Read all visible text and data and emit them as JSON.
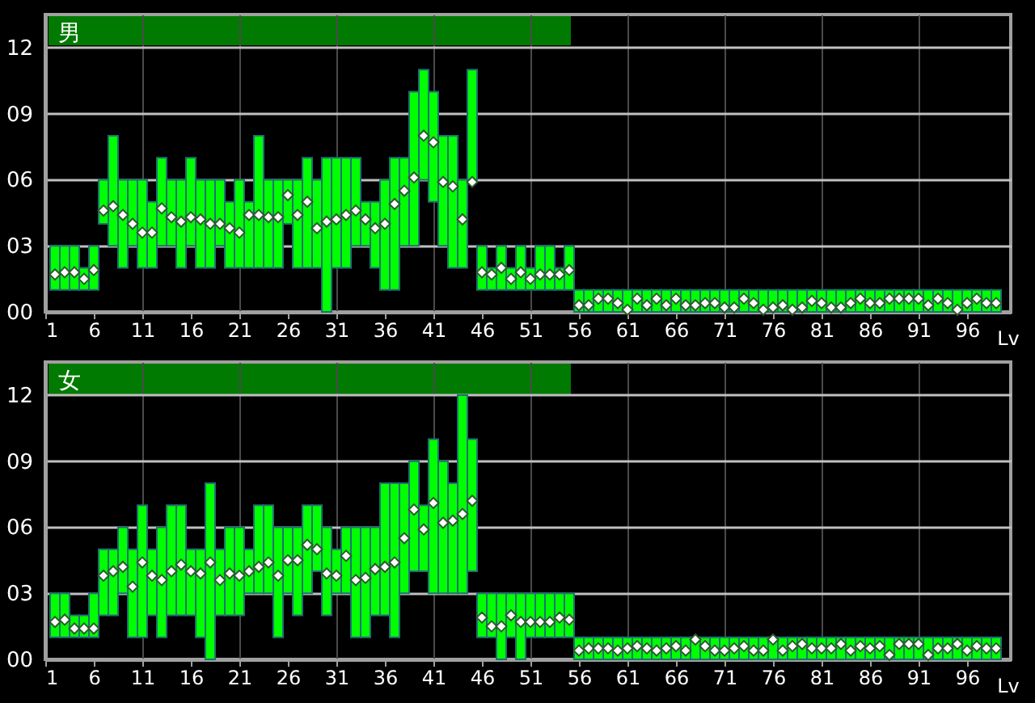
{
  "chart_data": [
    {
      "type": "bar",
      "title": "男",
      "xlabel": "Lv",
      "grid": true,
      "x": [
        2,
        3,
        4,
        5,
        6,
        7,
        8,
        9,
        10,
        11,
        12,
        13,
        14,
        15,
        16,
        17,
        18,
        19,
        20,
        21,
        22,
        23,
        24,
        25,
        26,
        27,
        28,
        29,
        30,
        31,
        32,
        33,
        34,
        35,
        36,
        37,
        38,
        39,
        40,
        41,
        42,
        43,
        44,
        45,
        46,
        47,
        48,
        49,
        50,
        51,
        52,
        53,
        54,
        55,
        56,
        57,
        58,
        59,
        60,
        61,
        62,
        63,
        64,
        65,
        66,
        67,
        68,
        69,
        70,
        71,
        72,
        73,
        74,
        75,
        76,
        77,
        78,
        79,
        80,
        81,
        82,
        83,
        84,
        85,
        86,
        87,
        88,
        89,
        90,
        91,
        92,
        93,
        94,
        95,
        96,
        97,
        98,
        99
      ],
      "xlim": [
        1,
        100.5
      ],
      "xticks": [
        1,
        6,
        11,
        16,
        21,
        26,
        31,
        36,
        41,
        46,
        51,
        56,
        61,
        66,
        71,
        76,
        81,
        86,
        91,
        96
      ],
      "ylim": [
        0,
        13.5
      ],
      "yticks": [
        {
          "value": 0,
          "label": "00"
        },
        {
          "value": 3,
          "label": "03"
        },
        {
          "value": 6,
          "label": "06"
        },
        {
          "value": 9,
          "label": "09"
        },
        {
          "value": 12,
          "label": "12"
        }
      ],
      "series": [
        {
          "type": "bar",
          "color": "#00ff00",
          "base": [
            1,
            1,
            1,
            1,
            1,
            4,
            3,
            2,
            3,
            2,
            2,
            3,
            3,
            2,
            3,
            2,
            2,
            3,
            2,
            2,
            2,
            2,
            2,
            2,
            4,
            2,
            2,
            2,
            0,
            2,
            2,
            3,
            3,
            2,
            1,
            1,
            3,
            3,
            6,
            5,
            3,
            2,
            2,
            6,
            1,
            1,
            1,
            1,
            1,
            1,
            1,
            1,
            1,
            1,
            0,
            0,
            0,
            0,
            0,
            0,
            0,
            0,
            0,
            0,
            0,
            0,
            0,
            0,
            0,
            0,
            0,
            0,
            0,
            0,
            0,
            0,
            0,
            0,
            0,
            0,
            0,
            0,
            0,
            0,
            0,
            0,
            0,
            0,
            0,
            0,
            0,
            0,
            0,
            0,
            0,
            0,
            0,
            0
          ],
          "values": [
            2,
            2,
            2,
            1,
            2,
            2,
            5,
            4,
            3,
            4,
            3,
            4,
            3,
            4,
            4,
            4,
            4,
            3,
            3,
            4,
            3,
            6,
            4,
            4,
            2,
            4,
            5,
            4,
            7,
            5,
            5,
            4,
            2,
            3,
            5,
            6,
            4,
            7,
            5,
            5,
            5,
            6,
            4,
            5,
            2,
            1,
            2,
            1,
            2,
            1,
            2,
            2,
            1,
            2,
            1,
            1,
            1,
            1,
            1,
            1,
            1,
            1,
            1,
            1,
            1,
            1,
            1,
            1,
            1,
            1,
            1,
            1,
            1,
            1,
            1,
            1,
            1,
            1,
            1,
            1,
            1,
            1,
            1,
            1,
            1,
            1,
            1,
            1,
            1,
            1,
            1,
            1,
            1,
            1,
            1,
            1,
            1,
            1
          ]
        },
        {
          "type": "scatter",
          "color": "#ffffff",
          "marker": "diamond",
          "values": [
            1.7,
            1.8,
            1.8,
            1.5,
            1.9,
            4.6,
            4.8,
            4.4,
            4.0,
            3.6,
            3.6,
            4.7,
            4.3,
            4.1,
            4.3,
            4.2,
            4.0,
            4.0,
            3.8,
            3.6,
            4.4,
            4.4,
            4.3,
            4.3,
            5.3,
            4.4,
            5.0,
            3.8,
            4.1,
            4.2,
            4.4,
            4.6,
            4.2,
            3.8,
            4.0,
            4.9,
            5.5,
            6.1,
            8.0,
            7.7,
            5.9,
            5.7,
            4.2,
            5.9,
            1.8,
            1.7,
            2.0,
            1.5,
            1.8,
            1.5,
            1.7,
            1.7,
            1.7,
            1.9,
            0.3,
            0.3,
            0.6,
            0.6,
            0.4,
            0.1,
            0.6,
            0.3,
            0.6,
            0.3,
            0.6,
            0.3,
            0.3,
            0.4,
            0.4,
            0.2,
            0.2,
            0.6,
            0.4,
            0.1,
            0.2,
            0.3,
            0.1,
            0.2,
            0.5,
            0.4,
            0.2,
            0.2,
            0.4,
            0.6,
            0.4,
            0.4,
            0.6,
            0.6,
            0.6,
            0.6,
            0.3,
            0.6,
            0.4,
            0.1,
            0.4,
            0.6,
            0.4,
            0.4
          ]
        }
      ]
    },
    {
      "type": "bar",
      "title": "女",
      "xlabel": "Lv",
      "grid": true,
      "x": [
        2,
        3,
        4,
        5,
        6,
        7,
        8,
        9,
        10,
        11,
        12,
        13,
        14,
        15,
        16,
        17,
        18,
        19,
        20,
        21,
        22,
        23,
        24,
        25,
        26,
        27,
        28,
        29,
        30,
        31,
        32,
        33,
        34,
        35,
        36,
        37,
        38,
        39,
        40,
        41,
        42,
        43,
        44,
        45,
        46,
        47,
        48,
        49,
        50,
        51,
        52,
        53,
        54,
        55,
        56,
        57,
        58,
        59,
        60,
        61,
        62,
        63,
        64,
        65,
        66,
        67,
        68,
        69,
        70,
        71,
        72,
        73,
        74,
        75,
        76,
        77,
        78,
        79,
        80,
        81,
        82,
        83,
        84,
        85,
        86,
        87,
        88,
        89,
        90,
        91,
        92,
        93,
        94,
        95,
        96,
        97,
        98,
        99
      ],
      "xlim": [
        1,
        100.5
      ],
      "xticks": [
        1,
        6,
        11,
        16,
        21,
        26,
        31,
        36,
        41,
        46,
        51,
        56,
        61,
        66,
        71,
        76,
        81,
        86,
        91,
        96
      ],
      "ylim": [
        0,
        13.5
      ],
      "yticks": [
        {
          "value": 0,
          "label": "00"
        },
        {
          "value": 3,
          "label": "03"
        },
        {
          "value": 6,
          "label": "06"
        },
        {
          "value": 9,
          "label": "09"
        },
        {
          "value": 12,
          "label": "12"
        }
      ],
      "series": [
        {
          "type": "bar",
          "color": "#00ff00",
          "base": [
            1,
            1,
            1,
            1,
            1,
            2,
            2,
            3,
            1,
            1,
            2,
            1,
            2,
            2,
            2,
            1,
            0,
            2,
            2,
            2,
            3,
            3,
            3,
            1,
            3,
            2,
            3,
            4,
            2,
            3,
            3,
            1,
            1,
            2,
            2,
            1,
            3,
            4,
            4,
            3,
            3,
            3,
            3,
            4,
            1,
            1,
            0,
            1,
            0,
            1,
            1,
            1,
            1,
            1,
            0,
            0,
            0,
            0,
            0,
            0,
            0,
            0,
            0,
            0,
            0,
            0,
            0,
            0,
            0,
            0,
            0,
            0,
            0,
            0,
            0,
            0,
            0,
            0,
            0,
            0,
            0,
            0,
            0,
            0,
            0,
            0,
            0,
            0,
            0,
            0,
            0,
            0,
            0,
            0,
            0,
            0,
            0,
            0
          ],
          "values": [
            2,
            2,
            1,
            1,
            2,
            3,
            3,
            3,
            4,
            6,
            3,
            5,
            5,
            5,
            3,
            4,
            8,
            3,
            4,
            4,
            2,
            4,
            4,
            5,
            3,
            4,
            4,
            3,
            4,
            2,
            3,
            5,
            5,
            4,
            6,
            7,
            5,
            5,
            3,
            7,
            6,
            5,
            9,
            6,
            2,
            2,
            3,
            2,
            3,
            2,
            2,
            2,
            2,
            2,
            1,
            1,
            1,
            1,
            1,
            1,
            1,
            1,
            1,
            1,
            1,
            1,
            1,
            1,
            1,
            1,
            1,
            1,
            1,
            1,
            1,
            1,
            1,
            1,
            1,
            1,
            1,
            1,
            1,
            1,
            1,
            1,
            1,
            1,
            1,
            1,
            1,
            1,
            1,
            1,
            1,
            1,
            1,
            1
          ]
        },
        {
          "type": "scatter",
          "color": "#ffffff",
          "marker": "diamond",
          "values": [
            1.7,
            1.8,
            1.4,
            1.4,
            1.4,
            3.8,
            4.0,
            4.2,
            3.3,
            4.4,
            3.8,
            3.6,
            4.0,
            4.3,
            4.0,
            3.9,
            4.4,
            3.6,
            3.9,
            3.8,
            4.0,
            4.2,
            4.4,
            3.8,
            4.5,
            4.5,
            5.2,
            5.0,
            3.9,
            3.8,
            4.7,
            3.6,
            3.7,
            4.1,
            4.2,
            4.4,
            5.5,
            6.8,
            5.9,
            7.1,
            6.2,
            6.3,
            6.6,
            7.2,
            1.9,
            1.5,
            1.5,
            2.0,
            1.7,
            1.7,
            1.7,
            1.7,
            1.9,
            1.8,
            0.4,
            0.5,
            0.5,
            0.5,
            0.4,
            0.5,
            0.6,
            0.5,
            0.4,
            0.5,
            0.6,
            0.4,
            0.9,
            0.6,
            0.4,
            0.4,
            0.5,
            0.6,
            0.4,
            0.4,
            0.9,
            0.4,
            0.6,
            0.7,
            0.5,
            0.5,
            0.5,
            0.7,
            0.4,
            0.6,
            0.5,
            0.6,
            0.2,
            0.7,
            0.7,
            0.7,
            0.2,
            0.5,
            0.5,
            0.7,
            0.4,
            0.6,
            0.5,
            0.5
          ]
        }
      ]
    }
  ]
}
